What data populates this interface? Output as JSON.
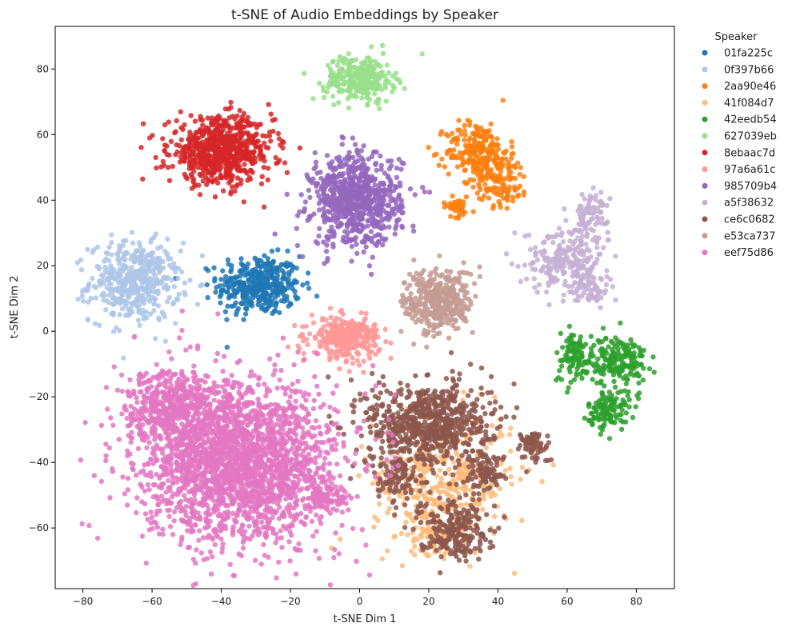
{
  "chart_data": {
    "type": "scatter",
    "title": "t-SNE of Audio Embeddings by Speaker",
    "xlabel": "t-SNE Dim 1",
    "ylabel": "t-SNE Dim 2",
    "xlim": [
      -88,
      91
    ],
    "ylim": [
      -78.5,
      93
    ],
    "xticks": [
      -80,
      -60,
      -40,
      -20,
      0,
      20,
      40,
      60,
      80
    ],
    "yticks": [
      -60,
      -40,
      -20,
      0,
      20,
      40,
      60,
      80
    ],
    "grid": false,
    "legend": {
      "title": "Speaker",
      "placement": "outside-right-top"
    },
    "series": [
      {
        "name": "01fa225c",
        "color": "#1f77b4",
        "clusters": [
          {
            "cx": -29,
            "cy": 14,
            "sx": 6,
            "sy": 4.5,
            "n": 380
          }
        ]
      },
      {
        "name": "0f397b66",
        "color": "#aec7e8",
        "clusters": [
          {
            "cx": -65,
            "cy": 15,
            "sx": 6.5,
            "sy": 6,
            "n": 460
          }
        ]
      },
      {
        "name": "2aa90e46",
        "color": "#ff7f0e",
        "clusters": [
          {
            "cx": 34,
            "cy": 55,
            "sx": 4.5,
            "sy": 4.5,
            "n": 220
          },
          {
            "cx": 41,
            "cy": 46,
            "sx": 4,
            "sy": 4,
            "n": 120
          },
          {
            "cx": 28,
            "cy": 38,
            "sx": 2,
            "sy": 1.5,
            "n": 40
          }
        ]
      },
      {
        "name": "41f084d7",
        "color": "#ffbb78",
        "clusters": [
          {
            "cx": 24,
            "cy": -45,
            "sx": 10,
            "sy": 10,
            "n": 420
          },
          {
            "cx": 22,
            "cy": -62,
            "sx": 4,
            "sy": 3,
            "n": 80
          }
        ]
      },
      {
        "name": "42eedb54",
        "color": "#2ca02c",
        "clusters": [
          {
            "cx": 75,
            "cy": -9,
            "sx": 4,
            "sy": 4,
            "n": 180
          },
          {
            "cx": 72,
            "cy": -24,
            "sx": 3,
            "sy": 3,
            "n": 120
          },
          {
            "cx": 62,
            "cy": -8,
            "sx": 3,
            "sy": 4,
            "n": 100
          }
        ]
      },
      {
        "name": "627039eb",
        "color": "#98df8a",
        "clusters": [
          {
            "cx": 0,
            "cy": 77,
            "sx": 5,
            "sy": 3.5,
            "n": 260
          }
        ]
      },
      {
        "name": "8ebaac7d",
        "color": "#d62728",
        "clusters": [
          {
            "cx": -40,
            "cy": 55,
            "sx": 7.5,
            "sy": 5,
            "n": 700
          }
        ]
      },
      {
        "name": "97a6a61c",
        "color": "#ff9896",
        "clusters": [
          {
            "cx": -4,
            "cy": -2,
            "sx": 5,
            "sy": 3,
            "n": 320
          }
        ]
      },
      {
        "name": "985709b4",
        "color": "#9467bd",
        "clusters": [
          {
            "cx": -1,
            "cy": 40,
            "sx": 6.5,
            "sy": 7,
            "n": 760
          }
        ]
      },
      {
        "name": "a5f38632",
        "color": "#c5b0d5",
        "clusters": [
          {
            "cx": 60,
            "cy": 22,
            "sx": 6,
            "sy": 5,
            "n": 240
          },
          {
            "cx": 67,
            "cy": 36,
            "sx": 2.5,
            "sy": 3,
            "n": 80
          },
          {
            "cx": 67,
            "cy": 13,
            "sx": 2.5,
            "sy": 2.5,
            "n": 50
          }
        ]
      },
      {
        "name": "ce6c0682",
        "color": "#8c564b",
        "clusters": [
          {
            "cx": 20,
            "cy": -28,
            "sx": 9,
            "sy": 6.5,
            "n": 680
          },
          {
            "cx": 27,
            "cy": -60,
            "sx": 5,
            "sy": 4.5,
            "n": 220
          },
          {
            "cx": 50,
            "cy": -35,
            "sx": 2.5,
            "sy": 2.5,
            "n": 70
          },
          {
            "cx": 36,
            "cy": -43,
            "sx": 3,
            "sy": 3,
            "n": 90
          },
          {
            "cx": 12,
            "cy": -44,
            "sx": 5,
            "sy": 5,
            "n": 110
          }
        ]
      },
      {
        "name": "e53ca737",
        "color": "#c49c94",
        "clusters": [
          {
            "cx": 23,
            "cy": 9,
            "sx": 5,
            "sy": 5,
            "n": 380
          }
        ]
      },
      {
        "name": "eef75d86",
        "color": "#e377c2",
        "clusters": [
          {
            "cx": -35,
            "cy": -40,
            "sx": 14,
            "sy": 12,
            "n": 2400
          },
          {
            "cx": -55,
            "cy": -22,
            "sx": 6,
            "sy": 5,
            "n": 400
          },
          {
            "cx": -10,
            "cy": -50,
            "sx": 3,
            "sy": 3,
            "n": 80
          }
        ]
      }
    ]
  }
}
